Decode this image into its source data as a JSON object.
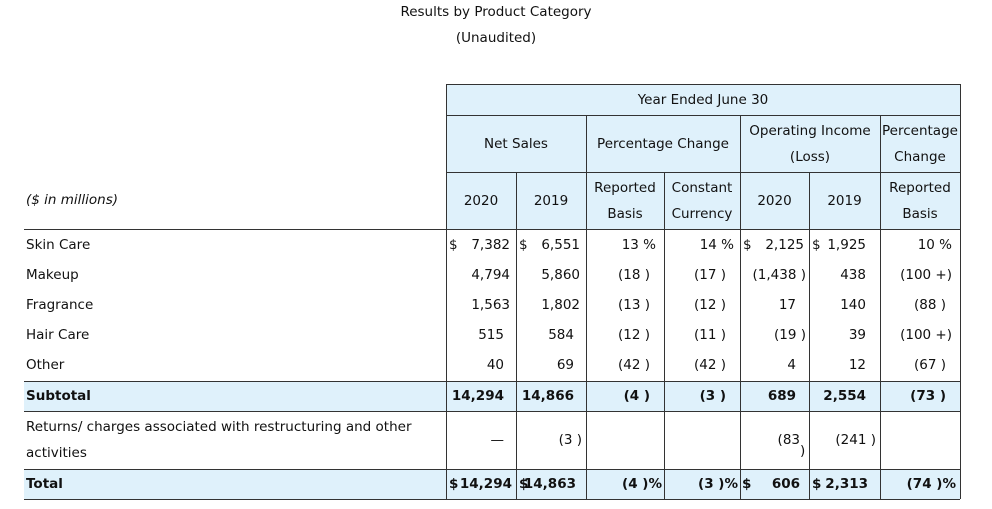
{
  "title": "Results by Product Category",
  "subtitle": "(Unaudited)",
  "header": {
    "year_ended": "Year Ended June 30",
    "net_sales": "Net Sales",
    "pct_change": "Percentage Change",
    "op_income_1": "Operating Income",
    "op_income_2": "(Loss)",
    "pct_change2_1": "Percentage",
    "pct_change2_2": "Change",
    "units": "($ in millions)",
    "y2020": "2020",
    "y2019": "2019",
    "reported_1": "Reported",
    "reported_2": "Basis",
    "constant_1": "Constant",
    "constant_2": "Currency",
    "oi2020": "2020",
    "oi2019": "2019",
    "reported2_1": "Reported",
    "reported2_2": "Basis"
  },
  "rows": [
    {
      "label": "Skin Care",
      "ns_d1": "$",
      "ns2020": "7,382",
      "ns_d2": "$",
      "ns2019": "6,551",
      "rep": "13 %",
      "cc": "14 %",
      "oi_d1": "$",
      "oi2020": "2,125",
      "oi_d2": "$",
      "oi2019": "1,925",
      "pc": "10 %"
    },
    {
      "label": "Makeup",
      "ns_d1": "",
      "ns2020": "4,794",
      "ns_d2": "",
      "ns2019": "5,860",
      "rep": "(18 )",
      "cc": "(17 )",
      "oi_d1": "",
      "oi2020": "(1,438 )",
      "oi_d2": "",
      "oi2019": "438",
      "pc": "(100 +)"
    },
    {
      "label": "Fragrance",
      "ns_d1": "",
      "ns2020": "1,563",
      "ns_d2": "",
      "ns2019": "1,802",
      "rep": "(13 )",
      "cc": "(12 )",
      "oi_d1": "",
      "oi2020": "17",
      "oi_d2": "",
      "oi2019": "140",
      "pc": "(88 )"
    },
    {
      "label": "Hair Care",
      "ns_d1": "",
      "ns2020": "515",
      "ns_d2": "",
      "ns2019": "584",
      "rep": "(12 )",
      "cc": "(11 )",
      "oi_d1": "",
      "oi2020": "(19 )",
      "oi_d2": "",
      "oi2019": "39",
      "pc": "(100 +)"
    },
    {
      "label": "Other",
      "ns_d1": "",
      "ns2020": "40",
      "ns_d2": "",
      "ns2019": "69",
      "rep": "(42 )",
      "cc": "(42 )",
      "oi_d1": "",
      "oi2020": "4",
      "oi_d2": "",
      "oi2019": "12",
      "pc": "(67 )"
    }
  ],
  "subtotal": {
    "label": "Subtotal",
    "ns2020": "14,294",
    "ns2019": "14,866",
    "rep": "(4 )",
    "cc": "(3 )",
    "oi2020": "689",
    "oi2019": "2,554",
    "pc": "(73 )"
  },
  "returns": {
    "label_1": "Returns/ charges associated with restructuring and other",
    "label_2": "activities",
    "ns2020": "—",
    "ns2019": "(3 )",
    "oi2020_1": "(83",
    "oi2020_2": ")",
    "oi2019": "(241 )"
  },
  "total": {
    "label": "Total",
    "ns_d1": "$",
    "ns2020": "14,294",
    "ns_d2": "$",
    "ns2019": "14,863",
    "rep": "(4 )%",
    "cc": "(3 )%",
    "oi_d1": "$",
    "oi2020": "606",
    "oi_d2": "$",
    "oi2019": "2,313",
    "pc": "(74 )%"
  }
}
